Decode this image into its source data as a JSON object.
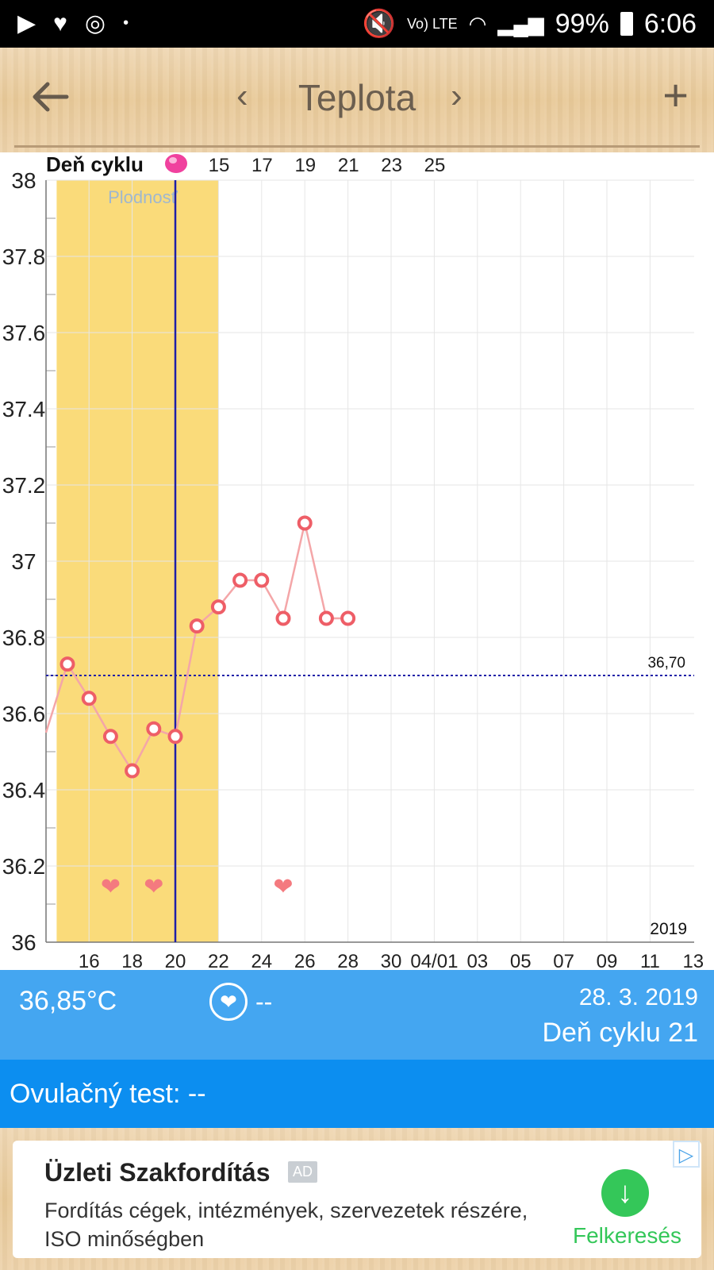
{
  "status_bar": {
    "time": "6:06",
    "battery": "99%",
    "network": "Vo) LTE",
    "icons": [
      "play-check-icon",
      "heart-icon",
      "clock-circle-icon",
      "dot-icon",
      "mute-icon",
      "wifi-icon",
      "signal-icon",
      "battery-icon"
    ]
  },
  "app_bar": {
    "title": "Teplota",
    "prev_label": "‹",
    "next_label": "›",
    "add_label": "+",
    "back_icon": "arrow-left-icon"
  },
  "chart_data": {
    "type": "line",
    "top_axis_label": "Deň cyklu",
    "top_ticks": [
      "15",
      "17",
      "19",
      "21",
      "23",
      "25"
    ],
    "x_ticks": [
      "16",
      "18",
      "20",
      "22",
      "24",
      "26",
      "28",
      "30",
      "04/01",
      "03",
      "05",
      "07",
      "09",
      "11",
      "13"
    ],
    "y_ticks": [
      "36",
      "36.2",
      "36.4",
      "36.6",
      "36.8",
      "37",
      "37.2",
      "37.4",
      "37.6",
      "37.8",
      "38"
    ],
    "ylim": [
      36,
      38
    ],
    "year_label": "2019",
    "fertile_label": "Plodnosť",
    "fertile_window": [
      14.5,
      22
    ],
    "today": 20,
    "coverline_value": 36.7,
    "coverline_label": "36,70",
    "series": [
      {
        "x": [
          14,
          15,
          16,
          17,
          18,
          19,
          20,
          21,
          22,
          23,
          24,
          25,
          26,
          27,
          28
        ],
        "values": [
          36.55,
          36.73,
          36.64,
          36.54,
          36.45,
          36.56,
          36.54,
          36.83,
          36.88,
          36.95,
          36.95,
          36.85,
          37.1,
          36.85,
          36.85
        ]
      }
    ],
    "heart_days": [
      17,
      19,
      25
    ],
    "colors": {
      "fertile": "#fadb7a",
      "line": "#f4a6a8",
      "marker": "#ee5e67",
      "today": "#1f1fa8",
      "coverline": "#1f1fa8",
      "heart": "#f47a7f",
      "pink_dot": "#f0419e"
    }
  },
  "info_bar": {
    "temperature": "36,85°C",
    "heart_value": "--",
    "date": "28. 3. 2019",
    "cycle_day": "Deň cyklu 21"
  },
  "ovulation": {
    "label": "Ovulačný test: --"
  },
  "ad": {
    "title": "Üzleti Szakfordítás",
    "badge": "AD",
    "description": "Fordítás cégek, intézmények, szervezetek részére, ISO minőségben",
    "cta": "Felkeresés",
    "choice_icon": "adchoices-icon",
    "download_icon": "arrow-down-icon"
  }
}
